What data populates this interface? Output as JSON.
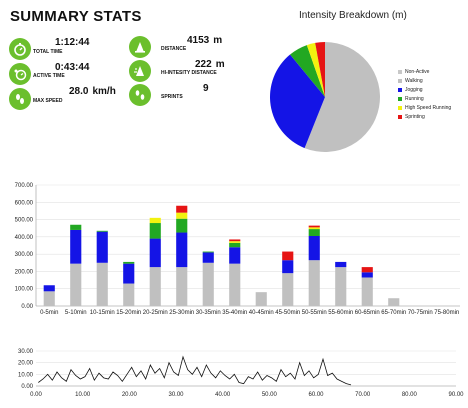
{
  "header": {
    "title": "SUMMARY STATS"
  },
  "stats": {
    "total_time": {
      "label": "TOTAL TIME",
      "value": "1:12:44",
      "unit": "",
      "icon": "stopwatch-icon"
    },
    "active_time": {
      "label": "ACTIVE TIME",
      "value": "0:43:44",
      "unit": "",
      "icon": "running-stopwatch-icon"
    },
    "max_speed": {
      "label": "MAX SPEED",
      "value": "28.0",
      "unit": "km/h",
      "icon": "footprints-icon"
    },
    "distance": {
      "label": "DISTANCE",
      "value": "4153",
      "unit": "m",
      "icon": "distance-cone-icon"
    },
    "hi_intensity_distance": {
      "label": "HI-INTESITY DISTANCE",
      "value": "222",
      "unit": "m",
      "icon": "hi-intensity-cone-icon"
    },
    "sprints": {
      "label": "SPRINTS",
      "value": "9",
      "unit": "",
      "icon": "sprint-footprints-icon"
    }
  },
  "colors": {
    "stat_icon_bg": "#6bbf2d",
    "non_active": "#c8c8c8",
    "walking": "#c0c0c0",
    "jogging": "#1414e6",
    "running": "#22a822",
    "high_speed_running": "#f2f20f",
    "sprinting": "#e61414",
    "timeline_line": "#111111"
  },
  "chart_data": [
    {
      "type": "pie",
      "title": "Intensity Breakdown (m)",
      "legend_position": "right",
      "slices": [
        {
          "label": "Non-Active",
          "value": 0,
          "color": "#c8c8c8"
        },
        {
          "label": "Walking",
          "value": 2328,
          "color": "#c0c0c0"
        },
        {
          "label": "Jogging",
          "value": 1370,
          "color": "#1414e6"
        },
        {
          "label": "Running",
          "value": 233,
          "color": "#22a822"
        },
        {
          "label": "High Speed Running",
          "value": 103,
          "color": "#f2f20f"
        },
        {
          "label": "Sprinting",
          "value": 119,
          "color": "#e61414"
        }
      ]
    },
    {
      "type": "bar",
      "stacked": true,
      "categories": [
        "0-5min",
        "5-10min",
        "10-15min",
        "15-20min",
        "20-25min",
        "25-30min",
        "30-35min",
        "35-40min",
        "40-45min",
        "45-50min",
        "50-55min",
        "55-60min",
        "60-65min",
        "65-70min",
        "70-75min",
        "75-80min"
      ],
      "ylim": [
        0,
        700
      ],
      "yticks": [
        "0.00",
        "100.00",
        "200.00",
        "300.00",
        "400.00",
        "500.00",
        "600.00",
        "700.00"
      ],
      "grid": true,
      "series": [
        {
          "name": "Walking",
          "color": "#c0c0c0",
          "values": [
            85,
            245,
            250,
            130,
            225,
            225,
            250,
            245,
            80,
            190,
            265,
            225,
            165,
            45,
            0,
            0
          ]
        },
        {
          "name": "Jogging",
          "color": "#1414e6",
          "values": [
            35,
            195,
            180,
            115,
            165,
            200,
            60,
            95,
            0,
            75,
            140,
            30,
            30,
            0,
            0,
            0
          ]
        },
        {
          "name": "Running",
          "color": "#22a822",
          "values": [
            0,
            30,
            5,
            10,
            90,
            80,
            5,
            25,
            0,
            0,
            40,
            0,
            0,
            0,
            0,
            0
          ]
        },
        {
          "name": "High Speed Running",
          "color": "#f2f20f",
          "values": [
            0,
            0,
            0,
            0,
            30,
            35,
            0,
            10,
            0,
            0,
            10,
            0,
            0,
            0,
            0,
            0
          ]
        },
        {
          "name": "Sprinting",
          "color": "#e61414",
          "values": [
            0,
            0,
            0,
            0,
            0,
            40,
            0,
            10,
            0,
            50,
            10,
            0,
            30,
            0,
            0,
            0
          ]
        }
      ]
    },
    {
      "type": "line",
      "xlim": [
        0,
        90
      ],
      "ylim": [
        0,
        30
      ],
      "xticks": [
        "0.00",
        "10.00",
        "20.00",
        "30.00",
        "40.00",
        "50.00",
        "60.00",
        "70.00",
        "80.00",
        "90.00"
      ],
      "yticks": [
        "0.00",
        "10.00",
        "20.00",
        "30.00"
      ],
      "grid": true,
      "series": [
        {
          "color": "#111111",
          "x": [
            0.5,
            1.5,
            2.5,
            3.5,
            4.5,
            5.5,
            6.5,
            7.5,
            8.5,
            9.5,
            10.5,
            11.5,
            12.5,
            13.5,
            14.5,
            15.5,
            16.5,
            17.5,
            18.5,
            19.5,
            20.5,
            21.5,
            22.5,
            23.5,
            24.5,
            25.5,
            26.5,
            27.5,
            28.5,
            29.5,
            30.5,
            31.5,
            32.5,
            33.5,
            34.5,
            35.5,
            36.5,
            37.5,
            38.5,
            39.5,
            40.5,
            41.5,
            42.5,
            43.5,
            44.5,
            45.5,
            46.5,
            47.5,
            48.5,
            49.5,
            50.5,
            51.5,
            52.5,
            53.5,
            54.5,
            55.5,
            56.5,
            57.5,
            58.5,
            59.5,
            60.5,
            61.5,
            62.5,
            63.5,
            64.5,
            65.5,
            66.5,
            67.5
          ],
          "y": [
            3,
            6,
            10,
            5,
            12,
            7,
            4,
            14,
            9,
            6,
            8,
            15,
            5,
            11,
            7,
            6,
            12,
            9,
            4,
            10,
            16,
            8,
            13,
            6,
            18,
            11,
            15,
            7,
            20,
            12,
            9,
            25,
            14,
            10,
            16,
            8,
            18,
            11,
            7,
            13,
            9,
            6,
            10,
            3,
            2,
            8,
            6,
            12,
            5,
            9,
            7,
            4,
            14,
            8,
            11,
            6,
            20,
            9,
            13,
            7,
            10,
            23,
            9,
            11,
            6,
            4,
            2,
            1
          ]
        }
      ]
    }
  ]
}
